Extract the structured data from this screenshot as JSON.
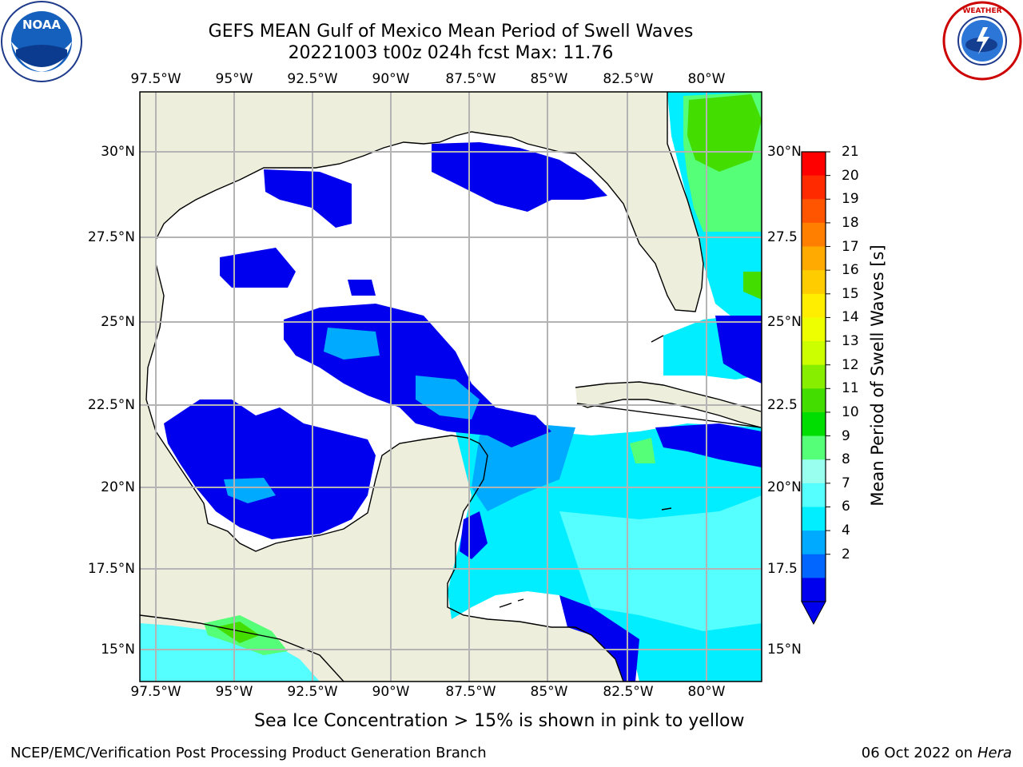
{
  "title": {
    "line1": "GEFS MEAN Gulf of Mexico Mean Period of Swell Waves",
    "line2": "20221003 t00z 024h fcst   Max: 11.76"
  },
  "axes": {
    "lon_ticks": [
      "97.5°W",
      "95°W",
      "92.5°W",
      "90°W",
      "87.5°W",
      "85°W",
      "82.5°W",
      "80°W"
    ],
    "lat_ticks_left": [
      "30°N",
      "27.5°N",
      "25°N",
      "22.5°N",
      "20°N",
      "17.5°N",
      "15°N"
    ],
    "lat_ticks_right": [
      "30°N",
      "27.5",
      "25°N",
      "22.5",
      "20°N",
      "17.5",
      "15°N"
    ]
  },
  "colorbar": {
    "label": "Mean Period of Swell Waves [s]",
    "ticks": [
      "21",
      "20",
      "19",
      "18",
      "17",
      "16",
      "15",
      "14",
      "13",
      "12",
      "11",
      "10",
      "9",
      "8",
      "7",
      "6",
      "4",
      "2"
    ],
    "colors": [
      "#ff0000",
      "#ff2a00",
      "#ff5500",
      "#ff8000",
      "#ffaa00",
      "#ffcc00",
      "#ffee00",
      "#eeff00",
      "#ccff00",
      "#88ee00",
      "#44dd00",
      "#00dd00",
      "#55ff77",
      "#99ffee",
      "#55ffff",
      "#00eeff",
      "#00aaff",
      "#0066ff",
      "#0000ee"
    ],
    "extend_color": "#0000ee"
  },
  "map": {
    "land_color": "#eeeedc",
    "gridline_color": "#b4b4b4"
  },
  "footer_note": "Sea Ice Concentration > 15% is shown in pink to yellow",
  "credit": "NCEP/EMC/Verification Post Processing Product Generation Branch",
  "datestamp": {
    "date": "06 Oct 2022 on ",
    "machine": "Hera"
  },
  "logos": {
    "left": {
      "icon": "noaa-logo",
      "text": "NOAA"
    },
    "right": {
      "icon": "nws-logo",
      "text": "NATIONAL WEATHER SERVICE"
    }
  }
}
